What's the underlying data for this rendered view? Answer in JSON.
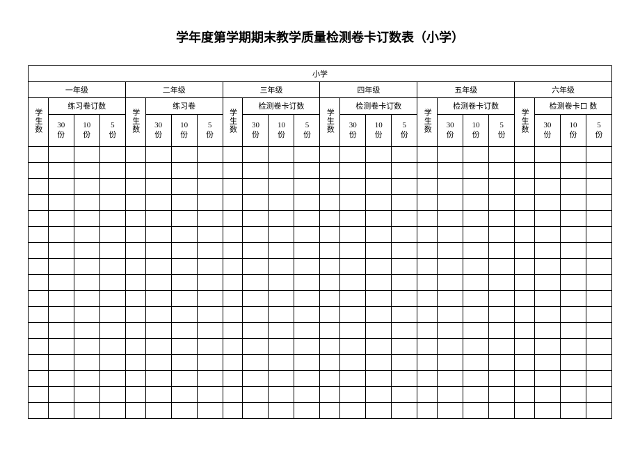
{
  "title": "学年度第学期期末教学质量检测卷卡订数表（小学）",
  "school_label": "小学",
  "student_count_label": "学生数",
  "grades": [
    {
      "name": "一年级",
      "sub_label": "练习卷订数",
      "qty_labels": [
        "30份",
        "10份",
        "5份"
      ]
    },
    {
      "name": "二年级",
      "sub_label": "练习卷",
      "qty_labels": [
        "30份",
        "10 份",
        "5份"
      ]
    },
    {
      "name": "三年级",
      "sub_label": "检测卷卡订数",
      "qty_labels": [
        "30 份",
        "10 份",
        "5份"
      ]
    },
    {
      "name": "四年级",
      "sub_label": "检测卷卡订数",
      "qty_labels": [
        "30 份",
        "10 份",
        "5份"
      ]
    },
    {
      "name": "五年级",
      "sub_label": "检测卷卡订数",
      "qty_labels": [
        "30份",
        "10份",
        "5份"
      ]
    },
    {
      "name": "六年级",
      "sub_label": "检测卷卡口  数",
      "qty_labels": [
        "30 份",
        "10份",
        "5份"
      ]
    }
  ],
  "empty_row_count": 17,
  "columns_per_grade": 4,
  "total_columns": 24,
  "styling": {
    "background_color": "#ffffff",
    "border_color": "#000000",
    "text_color": "#000000",
    "title_fontsize": 18,
    "cell_fontsize": 11,
    "font_family": "SimSun"
  }
}
